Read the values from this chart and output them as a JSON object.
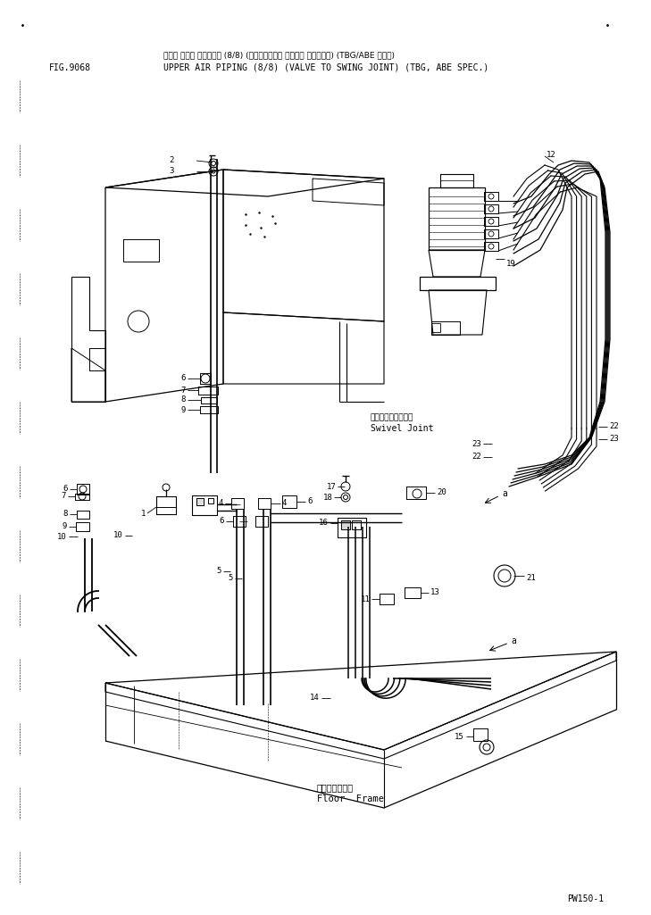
{
  "fig_number": "FIG.9068",
  "title_jp": "アッパ エアー パイピング (8/8) (ハイルブ・カラ スイベル ジョイント) (TBG/ABE ショウ)",
  "title_en": "UPPER AIR PIPING (8/8) (VALVE TO SWING JOINT) (TBG, ABE SPEC.)",
  "model": "PW150-1",
  "swivel_jp": "スイベルジョイント",
  "swivel_en": "Swivel Joint",
  "floor_jp": "フロアフレーム",
  "floor_en": "Floor  Frame",
  "bg_color": "#ffffff",
  "line_color": "#000000"
}
